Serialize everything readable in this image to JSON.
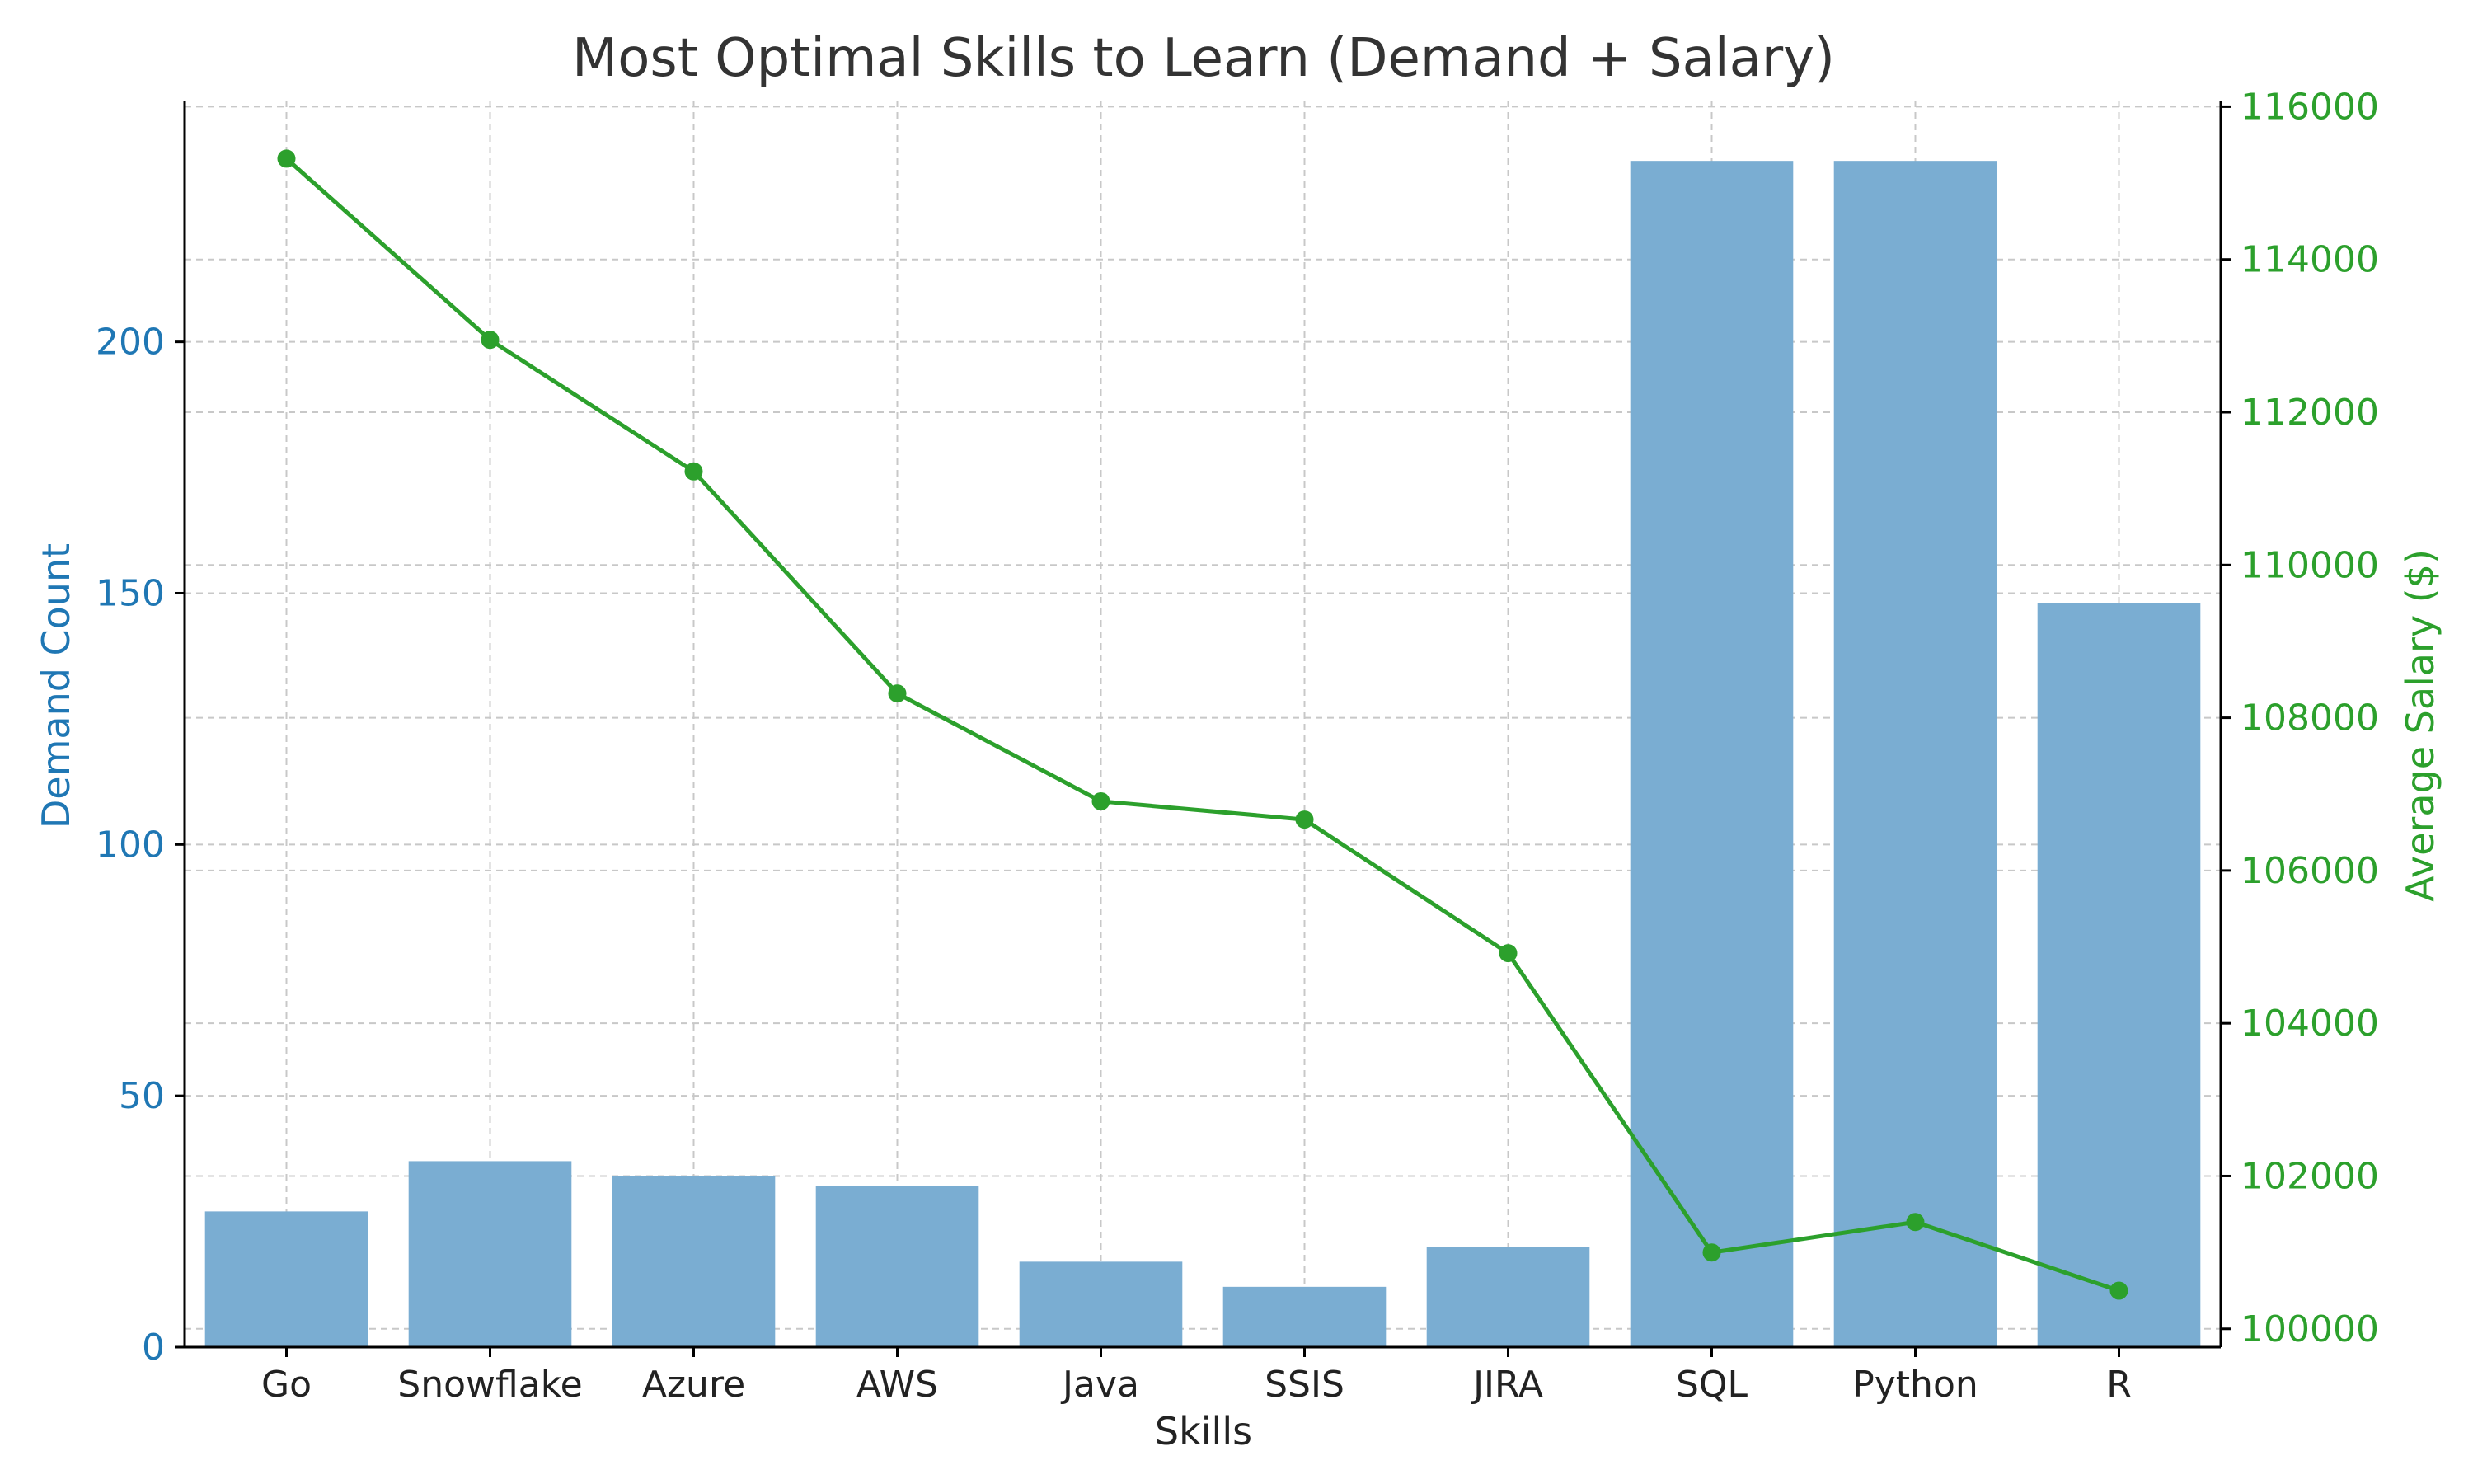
{
  "chart_data": {
    "type": "bar",
    "title": "Most Optimal Skills to Learn (Demand + Salary)",
    "xlabel": "Skills",
    "ylabel": "Demand Count",
    "y2label": "Average Salary ($)",
    "categories": [
      "Go",
      "Snowflake",
      "Azure",
      "AWS",
      "Java",
      "SSIS",
      "JIRA",
      "SQL",
      "Python",
      "R"
    ],
    "series": [
      {
        "type": "bar",
        "axis": "left",
        "values": [
          27,
          37,
          34,
          32,
          17,
          12,
          20,
          236,
          236,
          148
        ],
        "color": "#7aadd2"
      },
      {
        "type": "line",
        "axis": "right",
        "values": [
          115320,
          112948,
          111225,
          108318,
          106906,
          106667,
          104918,
          100999,
          101398,
          100499
        ],
        "color": "#2ca02c"
      }
    ],
    "ylim": [
      0,
      248
    ],
    "yticks": [
      0,
      50,
      100,
      150,
      200
    ],
    "y2lim": [
      99760,
      116080
    ],
    "y2ticks": [
      100000,
      102000,
      104000,
      106000,
      108000,
      110000,
      112000,
      114000,
      116000
    ],
    "grid": true,
    "colors": {
      "left_axis": "#1f77b4",
      "right_axis": "#2ca02c",
      "grid": "#c8c8c8"
    }
  }
}
